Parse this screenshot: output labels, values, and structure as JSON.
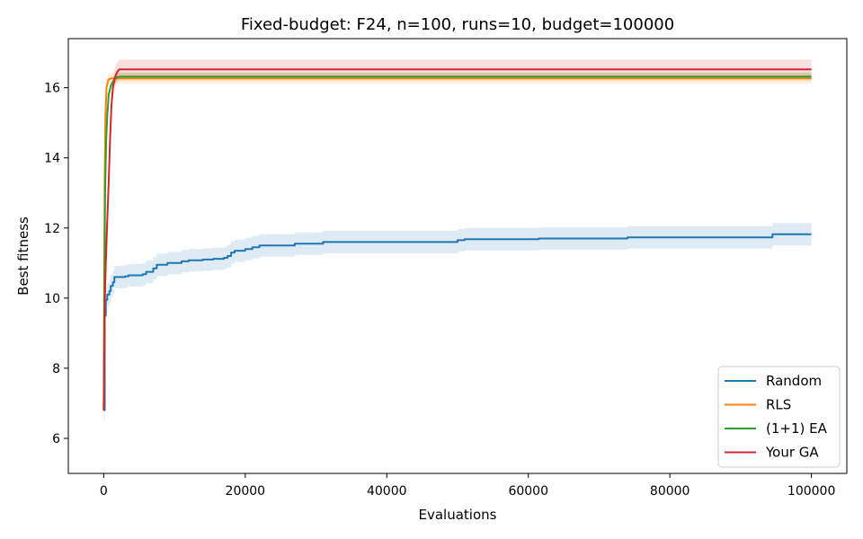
{
  "chart_data": {
    "type": "line",
    "title": "Fixed-budget: F24, n=100, runs=10, budget=100000",
    "xlabel": "Evaluations",
    "ylabel": "Best fitness",
    "xlim": [
      -5000,
      105000
    ],
    "ylim": [
      5,
      17.4
    ],
    "xticks": [
      0,
      20000,
      40000,
      60000,
      80000,
      100000
    ],
    "yticks": [
      6,
      8,
      10,
      12,
      14,
      16
    ],
    "grid": false,
    "legend_position": "bottom-right",
    "series": [
      {
        "name": "Random",
        "color": "#1f77b4",
        "step": true,
        "points": [
          [
            0,
            6.8
          ],
          [
            150,
            9.5
          ],
          [
            300,
            9.95
          ],
          [
            500,
            10.1
          ],
          [
            800,
            10.2
          ],
          [
            1000,
            10.35
          ],
          [
            1300,
            10.45
          ],
          [
            1500,
            10.6
          ],
          [
            3000,
            10.62
          ],
          [
            3500,
            10.65
          ],
          [
            5500,
            10.68
          ],
          [
            6000,
            10.75
          ],
          [
            7000,
            10.85
          ],
          [
            7500,
            10.95
          ],
          [
            9000,
            11.0
          ],
          [
            11000,
            11.05
          ],
          [
            12000,
            11.08
          ],
          [
            14000,
            11.1
          ],
          [
            15500,
            11.12
          ],
          [
            17000,
            11.15
          ],
          [
            17500,
            11.2
          ],
          [
            18000,
            11.3
          ],
          [
            18500,
            11.35
          ],
          [
            20000,
            11.4
          ],
          [
            21000,
            11.45
          ],
          [
            22000,
            11.5
          ],
          [
            27000,
            11.55
          ],
          [
            31000,
            11.6
          ],
          [
            50000,
            11.65
          ],
          [
            51000,
            11.68
          ],
          [
            61500,
            11.7
          ],
          [
            74000,
            11.73
          ],
          [
            94500,
            11.82
          ],
          [
            100000,
            11.82
          ]
        ],
        "band": 0.32
      },
      {
        "name": "RLS",
        "color": "#ff7f0e",
        "step": false,
        "points": [
          [
            0,
            6.8
          ],
          [
            80,
            11.0
          ],
          [
            150,
            13.5
          ],
          [
            250,
            15.2
          ],
          [
            400,
            16.0
          ],
          [
            600,
            16.2
          ],
          [
            800,
            16.25
          ],
          [
            1200,
            16.27
          ],
          [
            100000,
            16.27
          ]
        ],
        "band": 0.15
      },
      {
        "name": "(1+1) EA",
        "color": "#2ca02c",
        "step": false,
        "points": [
          [
            0,
            6.8
          ],
          [
            100,
            10.5
          ],
          [
            200,
            13.0
          ],
          [
            350,
            14.5
          ],
          [
            500,
            15.2
          ],
          [
            700,
            15.8
          ],
          [
            1000,
            16.05
          ],
          [
            1400,
            16.2
          ],
          [
            1800,
            16.3
          ],
          [
            2400,
            16.32
          ],
          [
            100000,
            16.32
          ]
        ],
        "band": 0.12
      },
      {
        "name": "Your GA",
        "color": "#d62728",
        "step": false,
        "points": [
          [
            0,
            6.8
          ],
          [
            150,
            9.8
          ],
          [
            300,
            11.0
          ],
          [
            500,
            12.2
          ],
          [
            700,
            13.3
          ],
          [
            900,
            14.5
          ],
          [
            1100,
            15.5
          ],
          [
            1300,
            16.0
          ],
          [
            1600,
            16.3
          ],
          [
            1900,
            16.45
          ],
          [
            2200,
            16.52
          ],
          [
            100000,
            16.52
          ]
        ],
        "band": 0.28
      }
    ]
  }
}
